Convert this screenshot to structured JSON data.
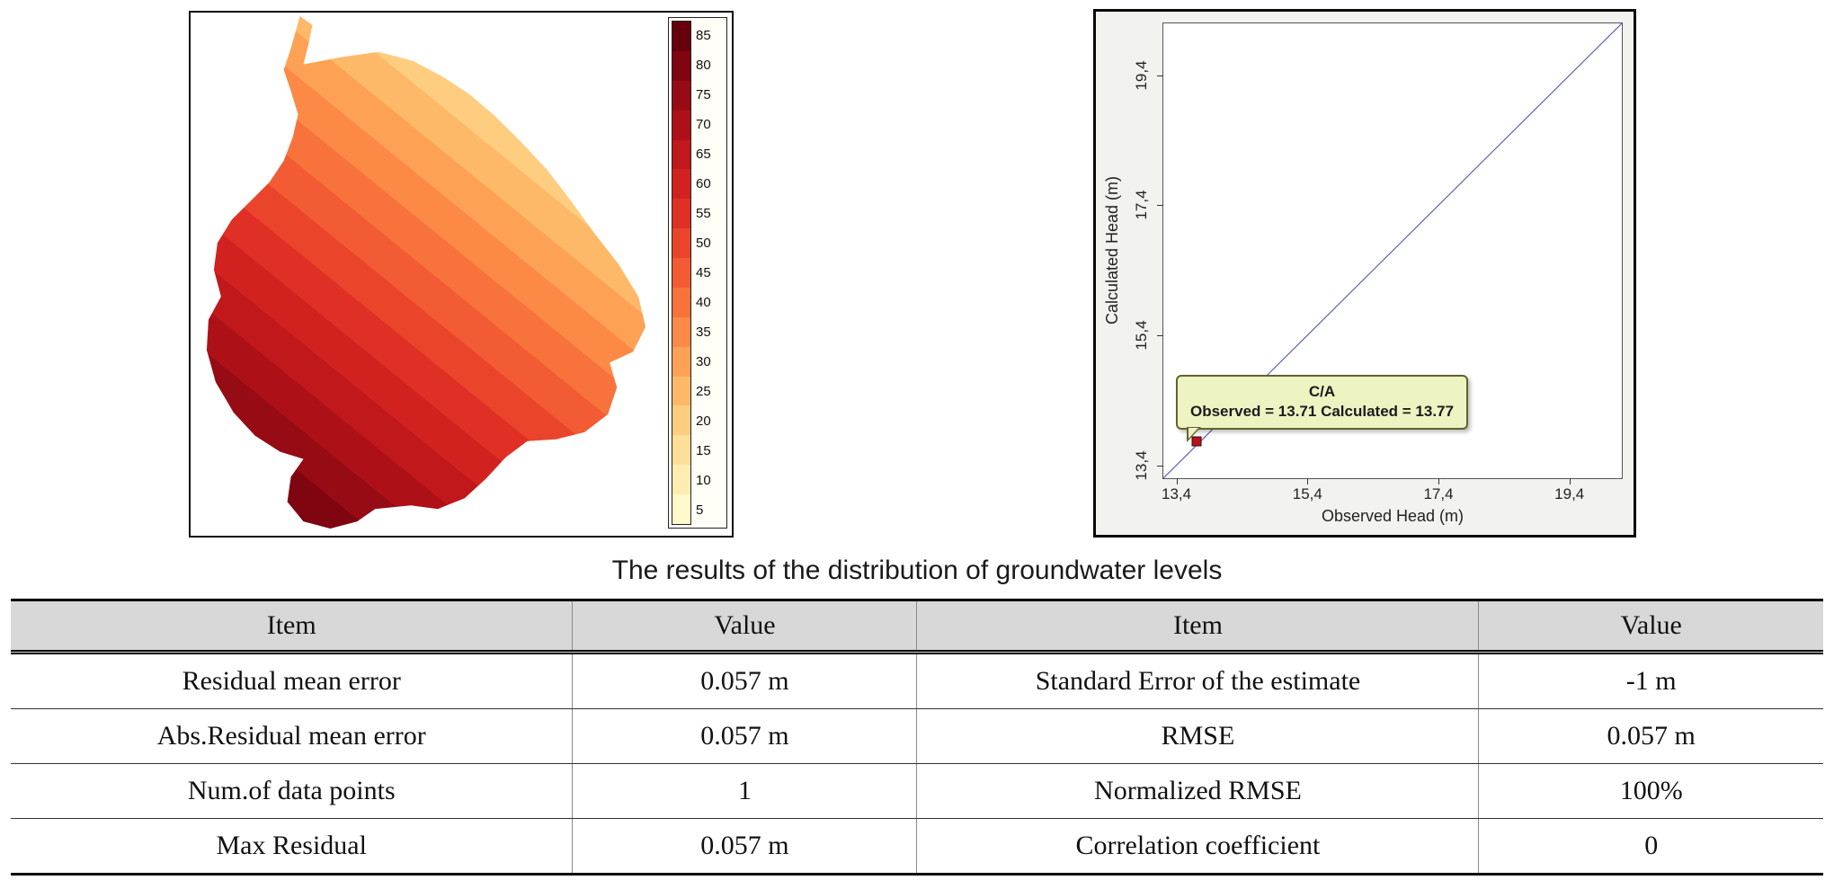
{
  "caption": "The results of the distribution of groundwater levels",
  "figure_map": {
    "legend_values": [
      "85",
      "80",
      "75",
      "70",
      "65",
      "60",
      "55",
      "50",
      "45",
      "40",
      "35",
      "30",
      "25",
      "20",
      "15",
      "10",
      "5"
    ],
    "legend_colors": [
      "#67000d",
      "#7f0511",
      "#970b15",
      "#ad1117",
      "#c0181b",
      "#d2221f",
      "#e02f24",
      "#ea452b",
      "#f25b33",
      "#f8723b",
      "#fc8a46",
      "#fda254",
      "#feb968",
      "#fecd7f",
      "#fedf98",
      "#feecb0",
      "#fff8cb"
    ]
  },
  "figure_scatter": {
    "y_axis_label": "Calculated Head (m)",
    "x_axis_label": "Observed Head (m)",
    "x_tick_labels": [
      "13,4",
      "15,4",
      "17,4",
      "19,4"
    ],
    "y_tick_labels": [
      "13,4",
      "15,4",
      "17,4",
      "19,4"
    ],
    "tooltip": {
      "title": "C/A",
      "body": "Observed = 13.71 Calculated = 13.77"
    },
    "line_color": "#5a62b0",
    "point_color": "#b5121b"
  },
  "table": {
    "headers": [
      "Item",
      "Value",
      "Item",
      "Value"
    ],
    "rows": [
      [
        "Residual mean error",
        "0.057 m",
        "Standard Error of the estimate",
        "-1 m"
      ],
      [
        "Abs.Residual mean error",
        "0.057 m",
        "RMSE",
        "0.057 m"
      ],
      [
        "Num.of data points",
        "1",
        "Normalized RMSE",
        "100%"
      ],
      [
        "Max Residual",
        "0.057 m",
        "Correlation coefficient",
        "0"
      ]
    ]
  },
  "chart_data": [
    {
      "type": "heatmap",
      "title": "Groundwater level distribution map",
      "legend_values": [
        85,
        80,
        75,
        70,
        65,
        60,
        55,
        50,
        45,
        40,
        35,
        30,
        25,
        20,
        15,
        10,
        5
      ],
      "legend_colors": [
        "#67000d",
        "#7f0511",
        "#970b15",
        "#ad1117",
        "#c0181b",
        "#d2221f",
        "#e02f24",
        "#ea452b",
        "#f25b33",
        "#f8723b",
        "#fc8a46",
        "#fda254",
        "#feb968",
        "#fecd7f",
        "#fedf98",
        "#feecb0",
        "#fff8cb"
      ],
      "note": "dark red = high head (southwest), pale yellow = low head (north and east)"
    },
    {
      "type": "scatter",
      "xlabel": "Observed Head (m)",
      "ylabel": "Calculated Head (m)",
      "xlim": [
        13.2,
        20.2
      ],
      "ylim": [
        13.2,
        20.2
      ],
      "x_ticks": [
        13.4,
        15.4,
        17.4,
        19.4
      ],
      "y_ticks": [
        13.4,
        15.4,
        17.4,
        19.4
      ],
      "points": [
        {
          "name": "C/A",
          "observed": 13.71,
          "calculated": 13.77
        }
      ],
      "reference_line": {
        "from": [
          13.2,
          13.2
        ],
        "to": [
          20.2,
          20.2
        ]
      },
      "annotations": [
        "C/A",
        "Observed = 13.71 Calculated = 13.77"
      ],
      "grid": false,
      "legend": "none"
    }
  ]
}
